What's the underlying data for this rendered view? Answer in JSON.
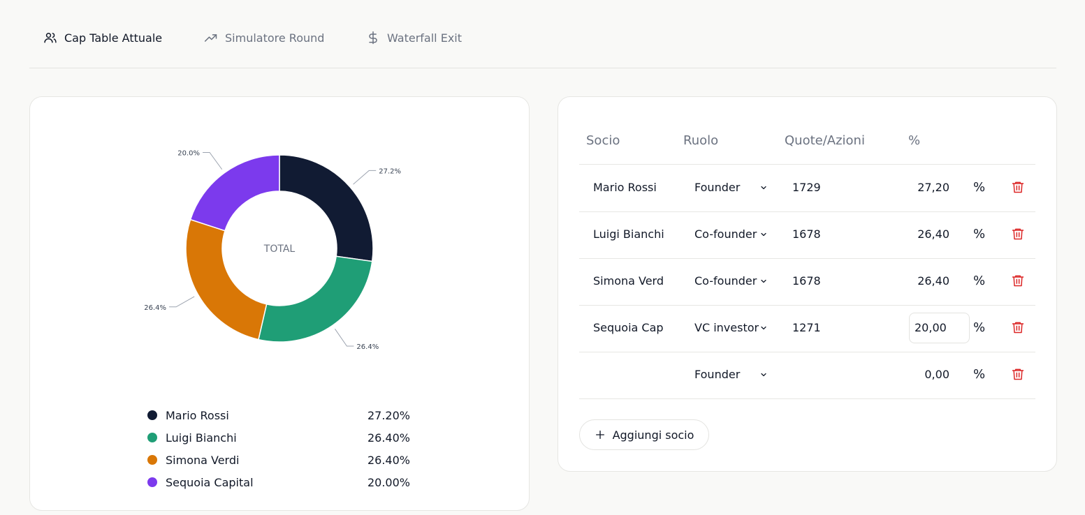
{
  "tabs": [
    {
      "label": "Cap Table Attuale",
      "icon": "users-icon",
      "active": true
    },
    {
      "label": "Simulatore Round",
      "icon": "trending-up-icon",
      "active": false
    },
    {
      "label": "Waterfall Exit",
      "icon": "dollar-icon",
      "active": false
    }
  ],
  "chart_data": {
    "type": "pie",
    "center_label": "TOTAL",
    "categories": [
      "Mario Rossi",
      "Luigi Bianchi",
      "Simona Verdi",
      "Sequoia Capital"
    ],
    "values": [
      27.2,
      26.4,
      26.4,
      20.0
    ],
    "slice_labels": [
      "27.2%",
      "26.4%",
      "26.4%",
      "20.0%"
    ],
    "colors": [
      "#111b33",
      "#1f9e76",
      "#d97706",
      "#7c3aed"
    ]
  },
  "legend": [
    {
      "name": "Mario Rossi",
      "value": "27.20%",
      "color": "#111b33"
    },
    {
      "name": "Luigi Bianchi",
      "value": "26.40%",
      "color": "#1f9e76"
    },
    {
      "name": "Simona Verdi",
      "value": "26.40%",
      "color": "#d97706"
    },
    {
      "name": "Sequoia Capital",
      "value": "20.00%",
      "color": "#7c3aed"
    }
  ],
  "table": {
    "headers": {
      "socio": "Socio",
      "ruolo": "Ruolo",
      "quote": "Quote/Azioni",
      "pct": "%"
    },
    "rows": [
      {
        "name": "Mario Rossi",
        "role": "Founder",
        "quote": "1729",
        "pct": "27,20",
        "pct_sign": "%",
        "focused": false
      },
      {
        "name": "Luigi Bianchi",
        "role": "Co-founder",
        "quote": "1678",
        "pct": "26,40",
        "pct_sign": "%",
        "focused": false
      },
      {
        "name": "Simona Verd",
        "role": "Co-founder",
        "quote": "1678",
        "pct": "26,40",
        "pct_sign": "%",
        "focused": false
      },
      {
        "name": "Sequoia Cap",
        "role": "VC investor",
        "quote": "1271",
        "pct": "20,00",
        "pct_sign": "%",
        "focused": true
      },
      {
        "name": "",
        "role": "Founder",
        "quote": "",
        "pct": "0,00",
        "pct_sign": "%",
        "focused": false
      }
    ]
  },
  "add_button": {
    "label": "Aggiungi socio"
  },
  "colors": {
    "delete": "#dc2626",
    "muted": "#6b7280",
    "text": "#111827"
  }
}
